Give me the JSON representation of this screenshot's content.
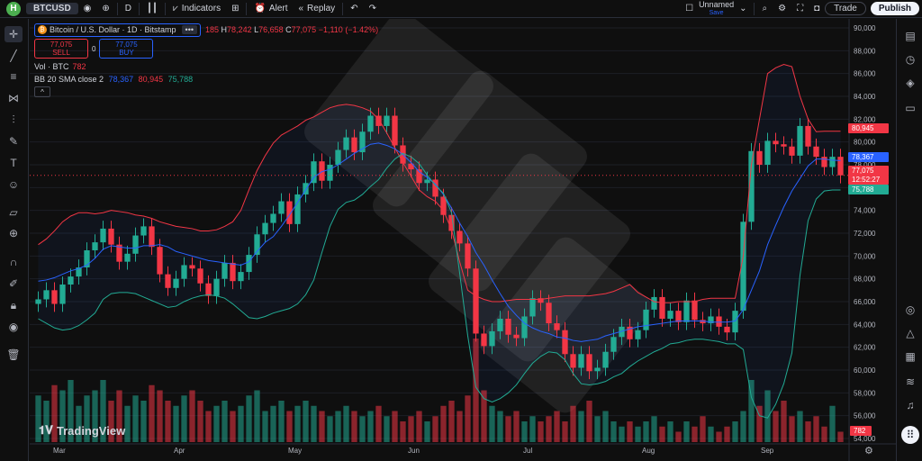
{
  "toolbar": {
    "logo": "H",
    "symbol": "BTCUSD",
    "interval": "D",
    "indicators": "Indicators",
    "alert": "Alert",
    "replay": "Replay",
    "layout_name": "Unnamed",
    "layout_status": "Save",
    "trade": "Trade",
    "publish": "Publish"
  },
  "legend": {
    "title": "Bitcoin / U.S. Dollar · 1D · Bitstamp",
    "more": "•••",
    "o_val": "185",
    "h_key": "H",
    "h_val": "78,242",
    "l_key": "L",
    "l_val": "76,658",
    "c_key": "C",
    "c_val": "77,075",
    "change": "−1,110 (−1.42%)",
    "sell_price": "77,075",
    "sell_label": "SELL",
    "spread": "0",
    "buy_price": "77,075",
    "buy_label": "BUY",
    "vol_label": "Vol · BTC",
    "vol_value": "782",
    "bb_label": "BB 20 SMA close 2",
    "bb_basis": "78,367",
    "bb_upper": "80,945",
    "bb_lower": "75,788",
    "collapse": "^"
  },
  "price_axis": {
    "ticks": [
      "90,000",
      "88,000",
      "86,000",
      "84,000",
      "82,000",
      "80,000",
      "78,000",
      "76,000",
      "74,000",
      "72,000",
      "70,000",
      "68,000",
      "66,000",
      "64,000",
      "62,000",
      "60,000",
      "58,000",
      "56,000",
      "54,000"
    ],
    "labels": {
      "upper": "80,945",
      "basis": "78,367",
      "last": "77,075",
      "countdown": "12:52:27",
      "lower": "75,788",
      "volume": "782"
    }
  },
  "time_axis": [
    "Mar",
    "Apr",
    "May",
    "Jun",
    "Jul",
    "Aug",
    "Sep"
  ],
  "watermark": "TradingView",
  "colors": {
    "up": "#22ab94",
    "down": "#f23645",
    "basis": "#2962ff",
    "upper": "#f23645",
    "lower": "#22ab94",
    "background": "#0f0f0f"
  },
  "chart_data": {
    "type": "candlestick",
    "symbol": "BTCUSD",
    "interval": "1D",
    "ylim": [
      54000,
      90000
    ],
    "y_ticks": [
      90000,
      88000,
      86000,
      84000,
      82000,
      80000,
      78000,
      76000,
      74000,
      72000,
      70000,
      68000,
      66000,
      64000,
      62000,
      60000,
      58000,
      56000,
      54000
    ],
    "x_labels": [
      "Mar",
      "Apr",
      "May",
      "Jun",
      "Jul",
      "Aug",
      "Sep"
    ],
    "close_series": [
      66200,
      67000,
      65800,
      67500,
      68200,
      69000,
      70500,
      71200,
      72400,
      71000,
      69500,
      70200,
      71800,
      72600,
      70800,
      68400,
      67200,
      68000,
      69200,
      68900,
      67600,
      66500,
      68000,
      69400,
      67800,
      68600,
      70100,
      71900,
      72900,
      73700,
      74800,
      72800,
      75400,
      76400,
      78300,
      76600,
      78000,
      79300,
      80400,
      79100,
      80900,
      82300,
      81400,
      82300,
      79700,
      78100,
      77600,
      76400,
      76700,
      75200,
      73600,
      72200,
      71100,
      68900,
      63200,
      62100,
      63400,
      64500,
      63100,
      62800,
      64700,
      66300,
      65900,
      64100,
      63500,
      61400,
      60200,
      61400,
      59900,
      60200,
      61600,
      62900,
      63800,
      62700,
      63500,
      65300,
      66400,
      64500,
      65200,
      64200,
      66100,
      64400,
      64100,
      64700,
      63800,
      63300,
      65200,
      73000,
      79200,
      78000,
      80100,
      79800,
      79600,
      78800,
      81400,
      79600,
      78700,
      77800,
      78700,
      77075
    ],
    "basis_series": [
      67800,
      67900,
      68100,
      68400,
      68700,
      68900,
      69200,
      69800,
      70600,
      70900,
      70800,
      70700,
      70700,
      70900,
      70900,
      71000,
      70800,
      70400,
      70200,
      70000,
      69800,
      69600,
      69500,
      69400,
      69300,
      69200,
      69500,
      70400,
      71200,
      71700,
      72600,
      73600,
      74700,
      75800,
      76900,
      77400,
      77600,
      78000,
      78500,
      79000,
      79400,
      79800,
      79900,
      79700,
      79400,
      78900,
      78200,
      77400,
      76900,
      76300,
      75400,
      74200,
      72900,
      71700,
      70300,
      69200,
      67900,
      66700,
      65600,
      64800,
      64100,
      63700,
      63400,
      63200,
      62900,
      62800,
      62600,
      62500,
      62600,
      62700,
      63000,
      63200,
      63400,
      63600,
      63800,
      63900,
      64000,
      64100,
      64200,
      64300,
      64300,
      64300,
      64300,
      64200,
      64200,
      64200,
      64300,
      65300,
      67000,
      68700,
      71000,
      72700,
      74300,
      75700,
      76800,
      77900,
      78500,
      78500,
      78400,
      78367
    ],
    "upper_series": [
      71000,
      71500,
      72200,
      73000,
      73500,
      73800,
      73800,
      73700,
      73800,
      74000,
      73900,
      73800,
      73600,
      73500,
      73300,
      73000,
      72800,
      72600,
      72500,
      72400,
      72200,
      72200,
      72300,
      72600,
      73000,
      74000,
      75800,
      77500,
      78800,
      79900,
      80600,
      81000,
      81400,
      81900,
      82200,
      82600,
      83000,
      83200,
      83300,
      83200,
      83000,
      82700,
      82000,
      80800,
      79500,
      78200,
      77000,
      75800,
      75200,
      74800,
      74000,
      72300,
      69500,
      67000,
      66500,
      66200,
      66000,
      66000,
      66100,
      66200,
      66200,
      66200,
      66200,
      66300,
      66400,
      66500,
      66500,
      66500,
      66500,
      66600,
      66700,
      66900,
      67200,
      67500,
      66800,
      66400,
      66000,
      65900,
      65900,
      66000,
      66000,
      66000,
      66200,
      66300,
      66300,
      66300,
      66300,
      70000,
      78000,
      82000,
      86000,
      86500,
      86800,
      86600,
      84000,
      82000,
      80900,
      80945,
      80945,
      80945
    ],
    "lower_series": [
      64500,
      64100,
      63700,
      63500,
      63600,
      63900,
      64400,
      65000,
      66200,
      66700,
      66800,
      66800,
      66700,
      66400,
      66100,
      65800,
      65500,
      65600,
      66000,
      66300,
      66500,
      66600,
      66500,
      66300,
      65800,
      65200,
      64600,
      64500,
      64700,
      65000,
      65200,
      65400,
      65800,
      66600,
      67900,
      70300,
      72600,
      74100,
      74700,
      74900,
      75400,
      76100,
      76700,
      77700,
      78500,
      79000,
      78700,
      78100,
      77100,
      76200,
      75500,
      73800,
      68500,
      63000,
      58500,
      57500,
      57200,
      57500,
      58000,
      58700,
      59700,
      60600,
      61200,
      61600,
      61500,
      60900,
      59700,
      58800,
      58700,
      58800,
      59000,
      59400,
      59700,
      60300,
      60800,
      61200,
      61600,
      61900,
      62300,
      62400,
      62600,
      62700,
      62700,
      62600,
      62500,
      62300,
      62300,
      61800,
      57600,
      56000,
      55800,
      57000,
      58800,
      61500,
      68300,
      73100,
      75000,
      75700,
      75788,
      75788
    ],
    "volume_relative": [
      0.45,
      0.4,
      0.55,
      0.5,
      0.6,
      0.35,
      0.45,
      0.5,
      0.6,
      0.4,
      0.5,
      0.35,
      0.45,
      0.4,
      0.55,
      0.5,
      0.4,
      0.35,
      0.45,
      0.5,
      0.4,
      0.3,
      0.35,
      0.4,
      0.3,
      0.35,
      0.45,
      0.5,
      0.3,
      0.35,
      0.4,
      0.3,
      0.35,
      0.4,
      0.35,
      0.3,
      0.25,
      0.3,
      0.35,
      0.3,
      0.25,
      0.3,
      0.35,
      0.25,
      0.3,
      0.2,
      0.25,
      0.3,
      0.2,
      0.25,
      0.35,
      0.4,
      0.3,
      0.45,
      1.0,
      0.5,
      0.35,
      0.3,
      0.25,
      0.3,
      0.2,
      0.25,
      0.2,
      0.25,
      0.3,
      0.2,
      0.35,
      0.3,
      0.4,
      0.25,
      0.3,
      0.2,
      0.15,
      0.2,
      0.15,
      0.2,
      0.25,
      0.15,
      0.2,
      0.1,
      0.2,
      0.15,
      0.25,
      0.15,
      0.1,
      0.15,
      0.2,
      0.3,
      0.6,
      0.35,
      0.5,
      0.3,
      0.4,
      0.25,
      0.3,
      0.2,
      0.25,
      0.15,
      0.35,
      0.1
    ]
  }
}
